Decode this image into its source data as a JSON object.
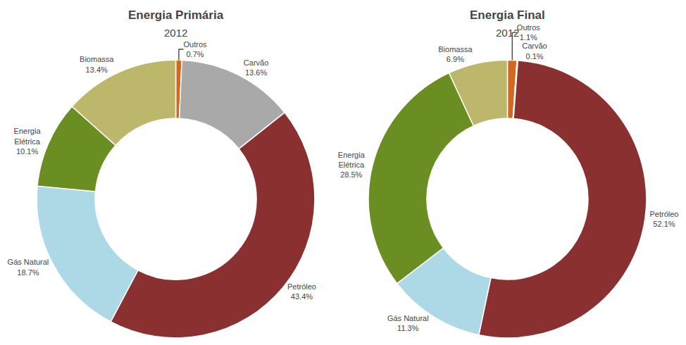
{
  "chart_data": [
    {
      "type": "donut",
      "title": "Energia Primária",
      "subtitle": "2012",
      "categories": [
        "Outros",
        "Carvão",
        "Petróleo",
        "Gás Natural",
        "Energia\nElétrica",
        "Biomassa"
      ],
      "values": [
        0.7,
        13.6,
        43.4,
        18.7,
        10.1,
        13.4
      ],
      "value_labels": [
        "0.7%",
        "13.6%",
        "43.4%",
        "18.7%",
        "10.1%",
        "13.4%"
      ],
      "colors": [
        "#D2691E",
        "#A9A9A9",
        "#8B3030",
        "#ADD8E6",
        "#6B8E23",
        "#BDB76B"
      ],
      "data_labels": true
    },
    {
      "type": "donut",
      "title": "Energia Final",
      "subtitle": "2012",
      "categories": [
        "Outros",
        "Carvão",
        "Petróleo",
        "Gás Natural",
        "Energia\nElétrica",
        "Biomassa"
      ],
      "values": [
        1.1,
        0.1,
        52.1,
        11.3,
        28.5,
        6.9
      ],
      "value_labels": [
        "1.1%",
        "0.1%",
        "52.1%",
        "11.3%",
        "28.5%",
        "6.9%"
      ],
      "colors": [
        "#D2691E",
        "#A9A9A9",
        "#8B3030",
        "#ADD8E6",
        "#6B8E23",
        "#BDB76B"
      ],
      "data_labels": true
    }
  ]
}
